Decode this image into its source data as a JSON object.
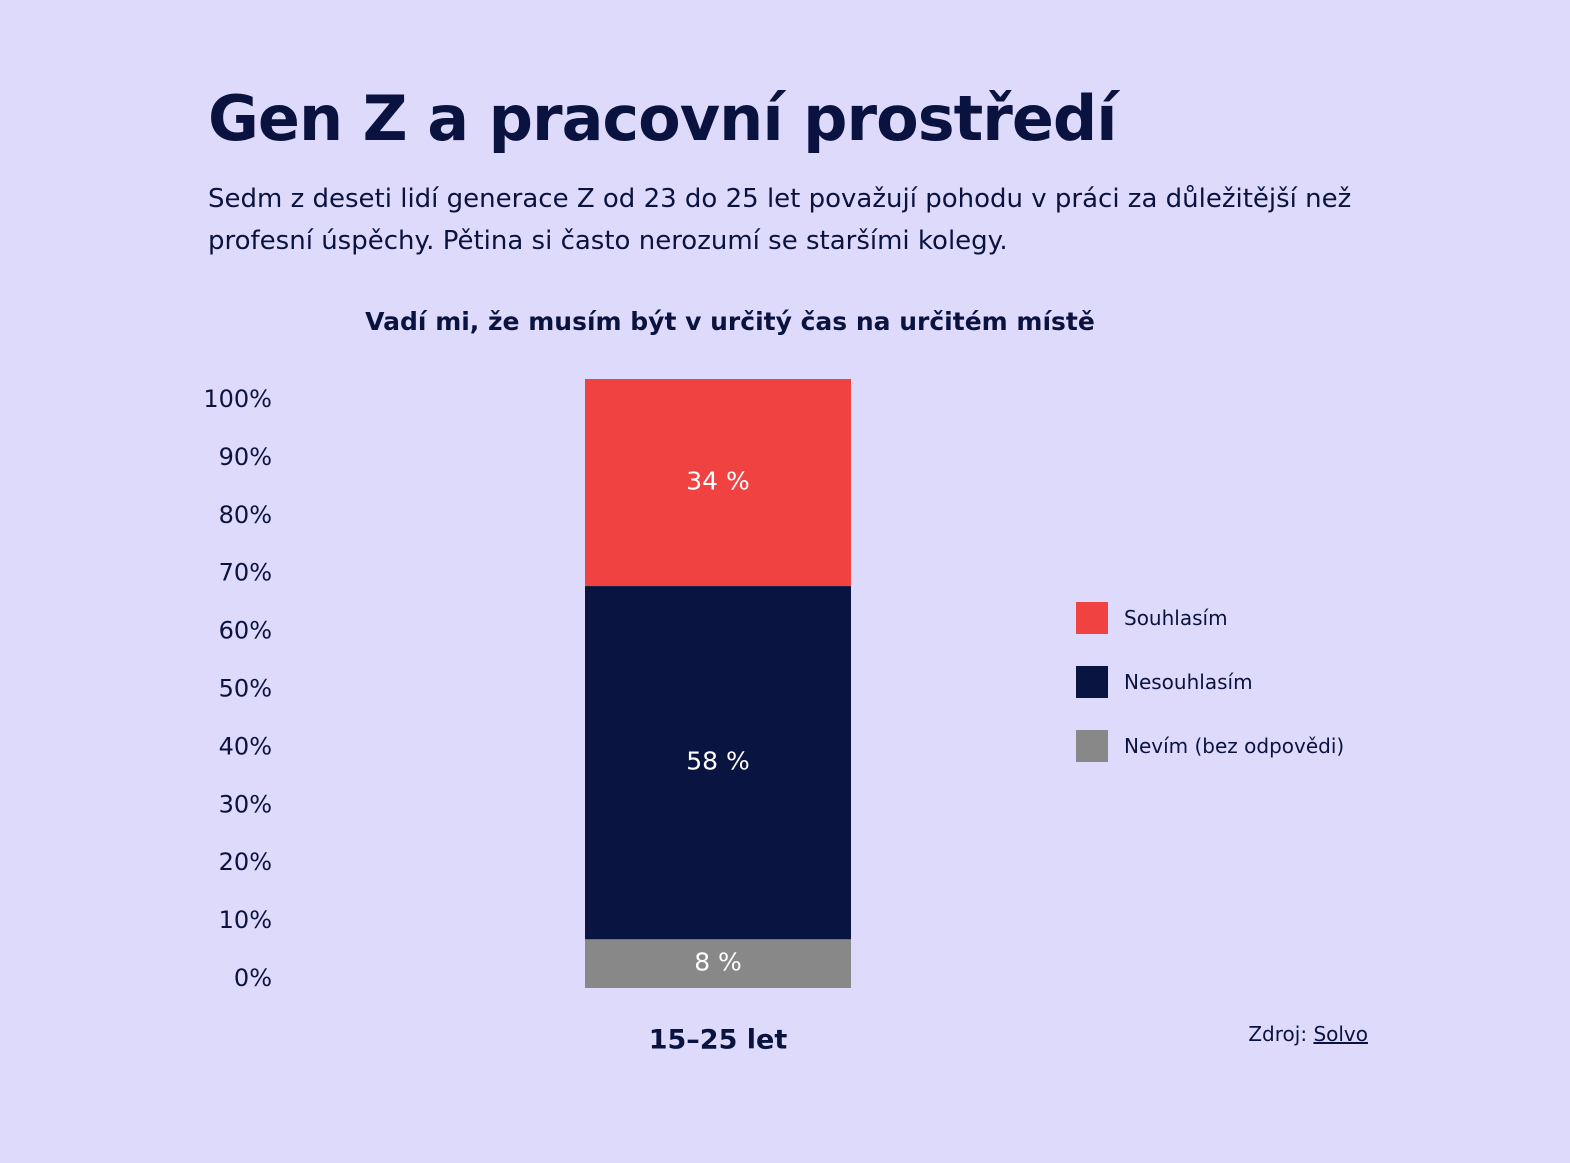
{
  "header": {
    "title": "Gen Z a pracovní prostředí",
    "subtitle": "Sedm z deseti lidí generace Z od 23 do 25 let považují pohodu v práci za důležitější než profesní úspěchy. Pětina si často nerozumí se staršími kolegy."
  },
  "colors": {
    "background": "#dedafb",
    "text": "#0a1340",
    "agree": "#ef4241",
    "disagree": "#0a1440",
    "unknown": "#888888"
  },
  "chart_data": {
    "type": "bar",
    "stacked": true,
    "title": "Vadí mi, že musím být v určitý čas na určitém místě",
    "categories": [
      "15–25 let"
    ],
    "series": [
      {
        "name": "Nevím (bez odpovědi)",
        "values": [
          8
        ],
        "label": "8 %",
        "color": "#888888"
      },
      {
        "name": "Nesouhlasím",
        "values": [
          58
        ],
        "label": "58 %",
        "color": "#0a1440"
      },
      {
        "name": "Souhlasím",
        "values": [
          34
        ],
        "label": "34 %",
        "color": "#ef4241"
      }
    ],
    "ylim": [
      0,
      100
    ],
    "yticks": [
      "0%",
      "10%",
      "20%",
      "30%",
      "40%",
      "50%",
      "60%",
      "70%",
      "80%",
      "90%",
      "100%"
    ],
    "grid": false,
    "legend_position": "right",
    "legend": [
      {
        "label": "Souhlasím",
        "color": "#ef4241"
      },
      {
        "label": "Nesouhlasím",
        "color": "#0a1440"
      },
      {
        "label": "Nevím (bez odpovědi)",
        "color": "#888888"
      }
    ]
  },
  "source": {
    "prefix": "Zdroj: ",
    "link_text": "Solvo"
  }
}
